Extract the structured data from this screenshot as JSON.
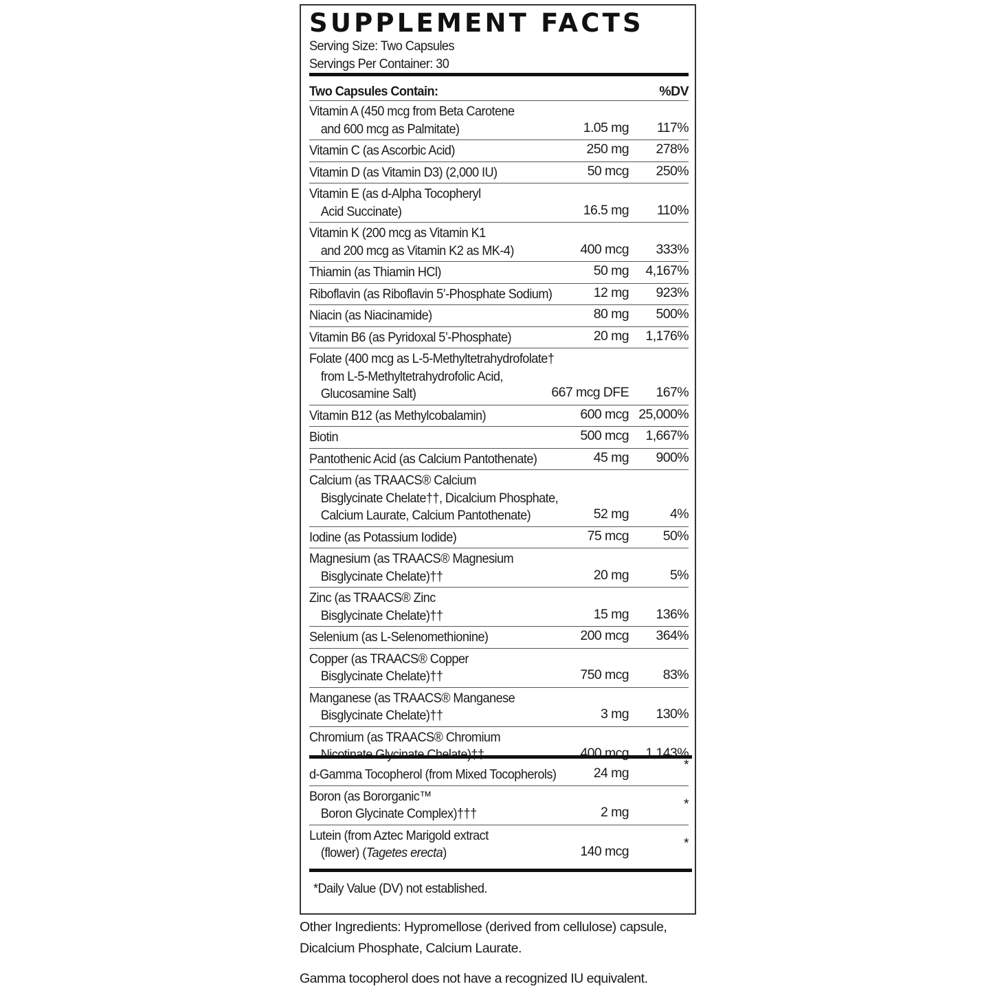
{
  "title": "SUPPLEMENT FACTS",
  "serving_size": "Serving Size: Two Capsules",
  "servings_per_container": "Servings Per Container: 30",
  "header": {
    "left": "Two Capsules Contain:",
    "right": "%DV"
  },
  "nutrients": [
    {
      "lines": [
        "Vitamin A (450 mcg from Beta Carotene",
        "and 600 mcg as Palmitate)"
      ],
      "amount": "1.05 mg",
      "dv": "117%"
    },
    {
      "lines": [
        "Vitamin C (as Ascorbic Acid)"
      ],
      "amount": "250 mg",
      "dv": "278%"
    },
    {
      "lines": [
        "Vitamin D (as Vitamin D3) (2,000 IU)"
      ],
      "amount": "50 mcg",
      "dv": "250%"
    },
    {
      "lines": [
        "Vitamin E (as d-Alpha Tocopheryl",
        "Acid Succinate)"
      ],
      "amount": "16.5 mg",
      "dv": "110%"
    },
    {
      "lines": [
        "Vitamin K (200 mcg as Vitamin K1",
        "and 200 mcg as Vitamin K2 as MK-4)"
      ],
      "amount": "400 mcg",
      "dv": "333%"
    },
    {
      "lines": [
        "Thiamin (as Thiamin HCl)"
      ],
      "amount": "50 mg",
      "dv": "4,167%"
    },
    {
      "lines": [
        "Riboflavin (as Riboflavin 5’-Phosphate Sodium)"
      ],
      "amount": "12 mg",
      "dv": "923%"
    },
    {
      "lines": [
        "Niacin (as Niacinamide)"
      ],
      "amount": "80 mg",
      "dv": "500%"
    },
    {
      "lines": [
        "Vitamin B6 (as Pyridoxal 5’-Phosphate)"
      ],
      "amount": "20 mg",
      "dv": "1,176%"
    },
    {
      "lines": [
        "Folate (400 mcg as L-5-Methyltetrahydrofolate†",
        "from L-5-Methyltetrahydrofolic Acid,",
        "Glucosamine Salt)"
      ],
      "amount": "667 mcg DFE",
      "dv": "167%"
    },
    {
      "lines": [
        "Vitamin B12 (as Methylcobalamin)"
      ],
      "amount": "600 mcg",
      "dv": "25,000%"
    },
    {
      "lines": [
        "Biotin"
      ],
      "amount": "500 mcg",
      "dv": "1,667%"
    },
    {
      "lines": [
        "Pantothenic Acid (as Calcium Pantothenate)"
      ],
      "amount": "45 mg",
      "dv": "900%"
    },
    {
      "lines": [
        "Calcium (as TRAACS® Calcium",
        "Bisglycinate Chelate††, Dicalcium Phosphate,",
        "Calcium Laurate, Calcium Pantothenate)"
      ],
      "amount": "52 mg",
      "dv": "4%"
    },
    {
      "lines": [
        "Iodine (as Potassium Iodide)"
      ],
      "amount": "75 mcg",
      "dv": "50%"
    },
    {
      "lines": [
        "Magnesium (as TRAACS® Magnesium",
        "Bisglycinate Chelate)††"
      ],
      "amount": "20 mg",
      "dv": "5%"
    },
    {
      "lines": [
        "Zinc (as TRAACS® Zinc",
        "Bisglycinate Chelate)††"
      ],
      "amount": "15 mg",
      "dv": "136%"
    },
    {
      "lines": [
        "Selenium (as L-Selenomethionine)"
      ],
      "amount": "200 mcg",
      "dv": "364%"
    },
    {
      "lines": [
        "Copper (as TRAACS® Copper",
        "Bisglycinate Chelate)††"
      ],
      "amount": "750 mcg",
      "dv": "83%"
    },
    {
      "lines": [
        "Manganese (as TRAACS® Manganese",
        "Bisglycinate Chelate)††"
      ],
      "amount": "3 mg",
      "dv": "130%"
    },
    {
      "lines": [
        "Chromium (as TRAACS® Chromium",
        "Nicotinate Glycinate Chelate)††"
      ],
      "amount": "400 mcg",
      "dv": "1,143%"
    }
  ],
  "other_nutrients": [
    {
      "lines": [
        "d-Gamma Tocopherol (from Mixed Tocopherols)"
      ],
      "amount": "24 mg",
      "dv": "*"
    },
    {
      "lines": [
        "Boron (as Bororganic™",
        "Boron Glycinate Complex)†††"
      ],
      "amount": "2 mg",
      "dv": "*"
    },
    {
      "lines": [
        "Lutein (from Aztec Marigold extract",
        "(flower) ("
      ],
      "italic": "Tagetes erecta",
      "after_italic": ")",
      "amount": "140 mcg",
      "dv": "*"
    }
  ],
  "footnote": "*Daily Value (DV) not established.",
  "other_ingredients": [
    "Other Ingredients: Hypromellose (derived from cellulose) capsule,",
    "Dicalcium Phosphate, Calcium Laurate."
  ],
  "gamma_note": "Gamma tocopherol does not have a recognized IU equivalent."
}
